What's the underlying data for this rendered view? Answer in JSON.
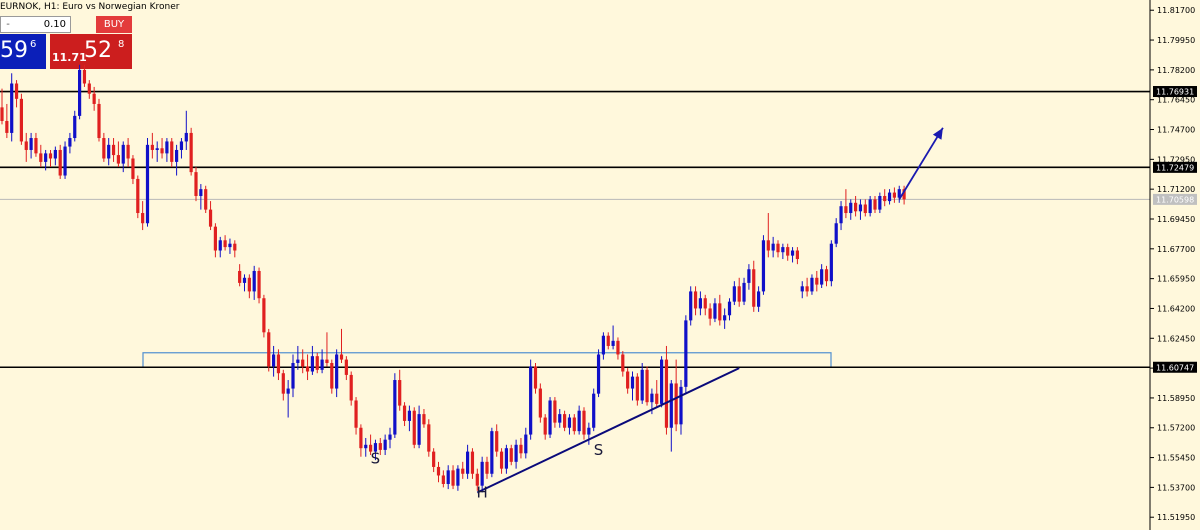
{
  "header": {
    "title": "EURNOK, H1:  Euro vs Norwegian Kroner"
  },
  "trade_panel": {
    "lots_minus": "-",
    "lots": "0.10",
    "buy_label": "BUY",
    "sell_big": "59",
    "sell_sup": "6",
    "buy_small": "11.71",
    "buy_big": "52",
    "buy_sup": "8"
  },
  "colors": {
    "background": "#FFF8DC",
    "bull_candle": "#1010C8",
    "bear_candle": "#E02020",
    "horizontal_lines": "#000000",
    "zone_border": "#4F8FD0",
    "trendline": "#0A0A7A",
    "arrow": "#1A1AB0",
    "current_price_line": "#B8B8B8"
  },
  "chart_data": {
    "type": "candlestick",
    "symbol": "EURNOK",
    "timeframe": "H1",
    "ylim": [
      11.512,
      11.823
    ],
    "y_ticks": [
      "11.81700",
      "11.79950",
      "11.78200",
      "11.76450",
      "11.74700",
      "11.72950",
      "11.71200",
      "11.69450",
      "11.67700",
      "11.65950",
      "11.64200",
      "11.62450",
      "11.60700",
      "11.58950",
      "11.57200",
      "11.55450",
      "11.53700",
      "11.51950"
    ],
    "horizontal_lines": [
      {
        "price": 11.7693,
        "label": "11.76931"
      },
      {
        "price": 11.7248,
        "label": "11.72479"
      },
      {
        "price": 11.6075,
        "label": "11.60747"
      }
    ],
    "current_price": {
      "price": 11.706,
      "label": "11.70598"
    },
    "zone": {
      "top": 11.616,
      "bottom": 11.6075
    },
    "trendline": {
      "from": {
        "bar": 98,
        "price": 11.534
      },
      "to": {
        "bar": 152,
        "price": 11.607
      }
    },
    "arrow": {
      "from": {
        "bar": 185,
        "price": 11.706
      },
      "to": {
        "bar": 194,
        "price": 11.748
      }
    },
    "pattern_labels": [
      {
        "text": "S",
        "bar": 77,
        "price": 11.551
      },
      {
        "text": "H",
        "bar": 99,
        "price": 11.531
      },
      {
        "text": "S",
        "bar": 123,
        "price": 11.556
      }
    ],
    "candles": [
      [
        11.76,
        11.771,
        11.75,
        11.752
      ],
      [
        11.752,
        11.762,
        11.742,
        11.745
      ],
      [
        11.745,
        11.78,
        11.74,
        11.774
      ],
      [
        11.774,
        11.776,
        11.76,
        11.765
      ],
      [
        11.765,
        11.768,
        11.738,
        11.74
      ],
      [
        11.74,
        11.745,
        11.728,
        11.735
      ],
      [
        11.735,
        11.745,
        11.73,
        11.742
      ],
      [
        11.742,
        11.745,
        11.731,
        11.733
      ],
      [
        11.733,
        11.738,
        11.725,
        11.728
      ],
      [
        11.728,
        11.735,
        11.723,
        11.733
      ],
      [
        11.733,
        11.735,
        11.725,
        11.73
      ],
      [
        11.73,
        11.737,
        11.726,
        11.735
      ],
      [
        11.735,
        11.738,
        11.718,
        11.72
      ],
      [
        11.72,
        11.74,
        11.718,
        11.737
      ],
      [
        11.737,
        11.745,
        11.733,
        11.742
      ],
      [
        11.742,
        11.758,
        11.74,
        11.755
      ],
      [
        11.755,
        11.785,
        11.753,
        11.782
      ],
      [
        11.782,
        11.785,
        11.772,
        11.774
      ],
      [
        11.774,
        11.776,
        11.765,
        11.768
      ],
      [
        11.768,
        11.772,
        11.758,
        11.762
      ],
      [
        11.762,
        11.765,
        11.74,
        11.742
      ],
      [
        11.742,
        11.745,
        11.728,
        11.73
      ],
      [
        11.73,
        11.742,
        11.726,
        11.738
      ],
      [
        11.738,
        11.742,
        11.728,
        11.732
      ],
      [
        11.732,
        11.74,
        11.725,
        11.727
      ],
      [
        11.727,
        11.74,
        11.722,
        11.738
      ],
      [
        11.738,
        11.742,
        11.725,
        11.73
      ],
      [
        11.73,
        11.732,
        11.715,
        11.718
      ],
      [
        11.718,
        11.72,
        11.695,
        11.698
      ],
      [
        11.698,
        11.705,
        11.688,
        11.692
      ],
      [
        11.692,
        11.742,
        11.69,
        11.738
      ],
      [
        11.738,
        11.745,
        11.73,
        11.735
      ],
      [
        11.735,
        11.74,
        11.728,
        11.736
      ],
      [
        11.736,
        11.742,
        11.73,
        11.733
      ],
      [
        11.733,
        11.742,
        11.728,
        11.74
      ],
      [
        11.74,
        11.742,
        11.725,
        11.728
      ],
      [
        11.728,
        11.738,
        11.72,
        11.735
      ],
      [
        11.735,
        11.742,
        11.73,
        11.74
      ],
      [
        11.74,
        11.758,
        11.735,
        11.745
      ],
      [
        11.745,
        11.748,
        11.72,
        11.722
      ],
      [
        11.722,
        11.725,
        11.705,
        11.708
      ],
      [
        11.708,
        11.715,
        11.7,
        11.712
      ],
      [
        11.712,
        11.714,
        11.698,
        11.7
      ],
      [
        11.7,
        11.705,
        11.688,
        11.69
      ],
      [
        11.69,
        11.692,
        11.672,
        11.676
      ],
      [
        11.676,
        11.684,
        11.672,
        11.682
      ],
      [
        11.682,
        11.685,
        11.676,
        11.678
      ],
      [
        11.678,
        11.683,
        11.674,
        11.68
      ],
      [
        11.68,
        11.682,
        11.672,
        11.676
      ],
      [
        11.664,
        11.668,
        11.655,
        11.657
      ],
      [
        11.657,
        11.662,
        11.652,
        11.66
      ],
      [
        11.66,
        11.662,
        11.648,
        11.652
      ],
      [
        11.652,
        11.667,
        11.647,
        11.664
      ],
      [
        11.664,
        11.666,
        11.645,
        11.648
      ],
      [
        11.648,
        11.65,
        11.625,
        11.628
      ],
      [
        11.628,
        11.63,
        11.605,
        11.608
      ],
      [
        11.608,
        11.62,
        11.602,
        11.615
      ],
      [
        11.615,
        11.618,
        11.6,
        11.604
      ],
      [
        11.604,
        11.606,
        11.588,
        11.592
      ],
      [
        11.592,
        11.6,
        11.578,
        11.595
      ],
      [
        11.595,
        11.615,
        11.59,
        11.61
      ],
      [
        11.61,
        11.62,
        11.606,
        11.612
      ],
      [
        11.612,
        11.618,
        11.604,
        11.608
      ],
      [
        11.608,
        11.615,
        11.6,
        11.605
      ],
      [
        11.605,
        11.62,
        11.603,
        11.614
      ],
      [
        11.614,
        11.616,
        11.604,
        11.606
      ],
      [
        11.606,
        11.618,
        11.604,
        11.612
      ],
      [
        11.612,
        11.628,
        11.608,
        11.61
      ],
      [
        11.61,
        11.612,
        11.592,
        11.595
      ],
      [
        11.595,
        11.618,
        11.59,
        11.615
      ],
      [
        11.615,
        11.63,
        11.61,
        11.612
      ],
      [
        11.612,
        11.614,
        11.6,
        11.603
      ],
      [
        11.603,
        11.605,
        11.585,
        11.588
      ],
      [
        11.588,
        11.59,
        11.568,
        11.572
      ],
      [
        11.572,
        11.574,
        11.555,
        11.56
      ],
      [
        11.56,
        11.566,
        11.555,
        11.562
      ],
      [
        11.562,
        11.568,
        11.556,
        11.558
      ],
      [
        11.558,
        11.565,
        11.553,
        11.563
      ],
      [
        11.563,
        11.566,
        11.556,
        11.559
      ],
      [
        11.559,
        11.568,
        11.556,
        11.565
      ],
      [
        11.565,
        11.572,
        11.56,
        11.568
      ],
      [
        11.568,
        11.604,
        11.566,
        11.6
      ],
      [
        11.6,
        11.606,
        11.582,
        11.585
      ],
      [
        11.585,
        11.587,
        11.573,
        11.576
      ],
      [
        11.576,
        11.585,
        11.57,
        11.582
      ],
      [
        11.582,
        11.584,
        11.56,
        11.562
      ],
      [
        11.562,
        11.585,
        11.56,
        11.58
      ],
      [
        11.58,
        11.583,
        11.572,
        11.574
      ],
      [
        11.574,
        11.577,
        11.555,
        11.558
      ],
      [
        11.558,
        11.56,
        11.546,
        11.549
      ],
      [
        11.549,
        11.552,
        11.54,
        11.544
      ],
      [
        11.544,
        11.547,
        11.537,
        11.539
      ],
      [
        11.539,
        11.55,
        11.536,
        11.547
      ],
      [
        11.547,
        11.55,
        11.536,
        11.538
      ],
      [
        11.538,
        11.55,
        11.535,
        11.548
      ],
      [
        11.548,
        11.552,
        11.542,
        11.545
      ],
      [
        11.545,
        11.562,
        11.542,
        11.558
      ],
      [
        11.558,
        11.56,
        11.542,
        11.545
      ],
      [
        11.545,
        11.548,
        11.535,
        11.538
      ],
      [
        11.538,
        11.555,
        11.534,
        11.552
      ],
      [
        11.552,
        11.555,
        11.542,
        11.545
      ],
      [
        11.545,
        11.572,
        11.543,
        11.57
      ],
      [
        11.57,
        11.574,
        11.555,
        11.558
      ],
      [
        11.558,
        11.56,
        11.545,
        11.548
      ],
      [
        11.548,
        11.562,
        11.545,
        11.56
      ],
      [
        11.56,
        11.562,
        11.55,
        11.552
      ],
      [
        11.552,
        11.565,
        11.548,
        11.562
      ],
      [
        11.562,
        11.566,
        11.554,
        11.557
      ],
      [
        11.557,
        11.572,
        11.554,
        11.568
      ],
      [
        11.568,
        11.612,
        11.565,
        11.608
      ],
      [
        11.608,
        11.61,
        11.592,
        11.595
      ],
      [
        11.595,
        11.598,
        11.575,
        11.578
      ],
      [
        11.578,
        11.58,
        11.565,
        11.568
      ],
      [
        11.568,
        11.59,
        11.566,
        11.588
      ],
      [
        11.588,
        11.59,
        11.572,
        11.575
      ],
      [
        11.575,
        11.583,
        11.572,
        11.58
      ],
      [
        11.58,
        11.582,
        11.57,
        11.572
      ],
      [
        11.572,
        11.58,
        11.568,
        11.578
      ],
      [
        11.578,
        11.58,
        11.568,
        11.57
      ],
      [
        11.57,
        11.585,
        11.568,
        11.582
      ],
      [
        11.582,
        11.584,
        11.565,
        11.568
      ],
      [
        11.568,
        11.575,
        11.562,
        11.572
      ],
      [
        11.572,
        11.595,
        11.57,
        11.592
      ],
      [
        11.592,
        11.618,
        11.59,
        11.615
      ],
      [
        11.615,
        11.628,
        11.612,
        11.626
      ],
      [
        11.626,
        11.628,
        11.618,
        11.62
      ],
      [
        11.62,
        11.632,
        11.618,
        11.623
      ],
      [
        11.623,
        11.625,
        11.612,
        11.615
      ],
      [
        11.615,
        11.617,
        11.602,
        11.605
      ],
      [
        11.605,
        11.607,
        11.592,
        11.595
      ],
      [
        11.595,
        11.605,
        11.588,
        11.602
      ],
      [
        11.602,
        11.604,
        11.585,
        11.588
      ],
      [
        11.588,
        11.61,
        11.586,
        11.606
      ],
      [
        11.606,
        11.608,
        11.585,
        11.587
      ],
      [
        11.587,
        11.595,
        11.58,
        11.592
      ],
      [
        11.592,
        11.6,
        11.584,
        11.586
      ],
      [
        11.586,
        11.614,
        11.584,
        11.612
      ],
      [
        11.612,
        11.62,
        11.568,
        11.572
      ],
      [
        11.572,
        11.6,
        11.558,
        11.598
      ],
      [
        11.598,
        11.612,
        11.57,
        11.574
      ],
      [
        11.574,
        11.6,
        11.568,
        11.596
      ],
      [
        11.596,
        11.638,
        11.592,
        11.635
      ],
      [
        11.635,
        11.655,
        11.632,
        11.652
      ],
      [
        11.652,
        11.655,
        11.638,
        11.642
      ],
      [
        11.642,
        11.652,
        11.638,
        11.648
      ],
      [
        11.648,
        11.65,
        11.638,
        11.642
      ],
      [
        11.642,
        11.645,
        11.632,
        11.636
      ],
      [
        11.636,
        11.648,
        11.634,
        11.645
      ],
      [
        11.645,
        11.65,
        11.632,
        11.635
      ],
      [
        11.635,
        11.642,
        11.63,
        11.638
      ],
      [
        11.638,
        11.648,
        11.635,
        11.646
      ],
      [
        11.646,
        11.658,
        11.644,
        11.655
      ],
      [
        11.655,
        11.66,
        11.643,
        11.646
      ],
      [
        11.646,
        11.66,
        11.644,
        11.657
      ],
      [
        11.657,
        11.668,
        11.653,
        11.665
      ],
      [
        11.665,
        11.67,
        11.64,
        11.643
      ],
      [
        11.643,
        11.655,
        11.64,
        11.652
      ],
      [
        11.652,
        11.685,
        11.65,
        11.682
      ],
      [
        11.682,
        11.698,
        11.672,
        11.676
      ],
      [
        11.676,
        11.684,
        11.672,
        11.68
      ],
      [
        11.68,
        11.682,
        11.672,
        11.675
      ],
      [
        11.675,
        11.68,
        11.671,
        11.678
      ],
      [
        11.678,
        11.68,
        11.67,
        11.673
      ],
      [
        11.673,
        11.678,
        11.669,
        11.676
      ],
      [
        11.676,
        11.678,
        11.668,
        11.671
      ],
      [
        11.652,
        11.658,
        11.648,
        11.655
      ],
      [
        11.655,
        11.66,
        11.649,
        11.652
      ],
      [
        11.652,
        11.662,
        11.65,
        11.66
      ],
      [
        11.66,
        11.664,
        11.652,
        11.656
      ],
      [
        11.656,
        11.668,
        11.654,
        11.665
      ],
      [
        11.665,
        11.667,
        11.655,
        11.658
      ],
      [
        11.658,
        11.682,
        11.655,
        11.68
      ],
      [
        11.68,
        11.695,
        11.678,
        11.692
      ],
      [
        11.692,
        11.705,
        11.688,
        11.702
      ],
      [
        11.702,
        11.712,
        11.695,
        11.698
      ],
      [
        11.698,
        11.706,
        11.694,
        11.704
      ],
      [
        11.704,
        11.708,
        11.696,
        11.699
      ],
      [
        11.699,
        11.706,
        11.694,
        11.703
      ],
      [
        11.703,
        11.706,
        11.696,
        11.698
      ],
      [
        11.698,
        11.708,
        11.696,
        11.706
      ],
      [
        11.706,
        11.708,
        11.698,
        11.7
      ],
      [
        11.7,
        11.71,
        11.698,
        11.708
      ],
      [
        11.708,
        11.712,
        11.702,
        11.705
      ],
      [
        11.705,
        11.712,
        11.703,
        11.71
      ],
      [
        11.71,
        11.713,
        11.704,
        11.707
      ],
      [
        11.707,
        11.714,
        11.704,
        11.712
      ],
      [
        11.712,
        11.714,
        11.703,
        11.706
      ]
    ]
  }
}
